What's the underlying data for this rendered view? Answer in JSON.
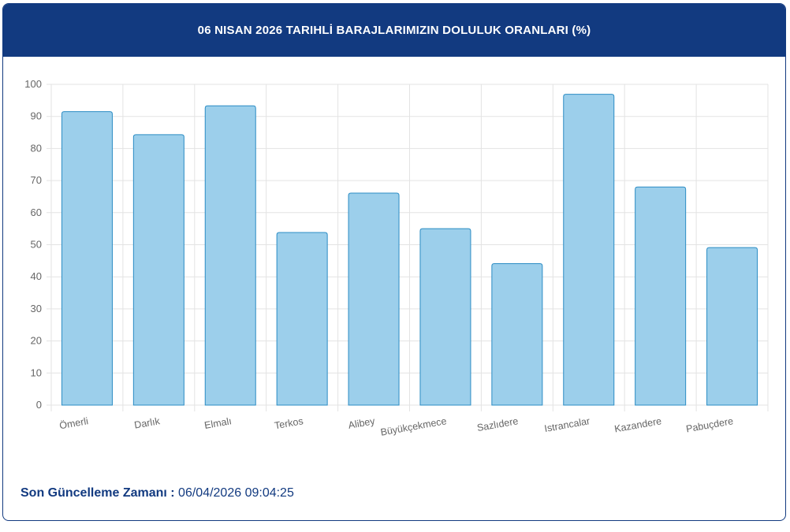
{
  "header": {
    "title": "06 NISAN 2026 TARIHLİ BARAJLARIMIZIN DOLULUK ORANLARI (%)"
  },
  "footer": {
    "label": "Son Güncelleme Zamanı",
    "separator": " : ",
    "value": "06/04/2026 09:04:25"
  },
  "colors": {
    "header_bg": "#123a80",
    "bar_fill": "#9ccfeb",
    "bar_stroke": "#2b8cc4",
    "grid": "#e3e3e3",
    "tick_text": "#666666"
  },
  "chart_data": {
    "type": "bar",
    "title": "06 NISAN 2026 TARIHLİ BARAJLARIMIZIN DOLULUK ORANLARI (%)",
    "categories": [
      "Ömerli",
      "Darlık",
      "Elmalı",
      "Terkos",
      "Alibey",
      "Büyükçekmece",
      "Sazlıdere",
      "Istrancalar",
      "Kazandere",
      "Pabuçdere"
    ],
    "values": [
      91.5,
      84.3,
      93.3,
      53.8,
      66.1,
      55.0,
      44.1,
      96.9,
      68.0,
      49.1
    ],
    "ylim": [
      0,
      100
    ],
    "yticks": [
      0,
      10,
      20,
      30,
      40,
      50,
      60,
      70,
      80,
      90,
      100
    ],
    "xlabel": "",
    "ylabel": "",
    "grid": true,
    "legend": "none"
  }
}
